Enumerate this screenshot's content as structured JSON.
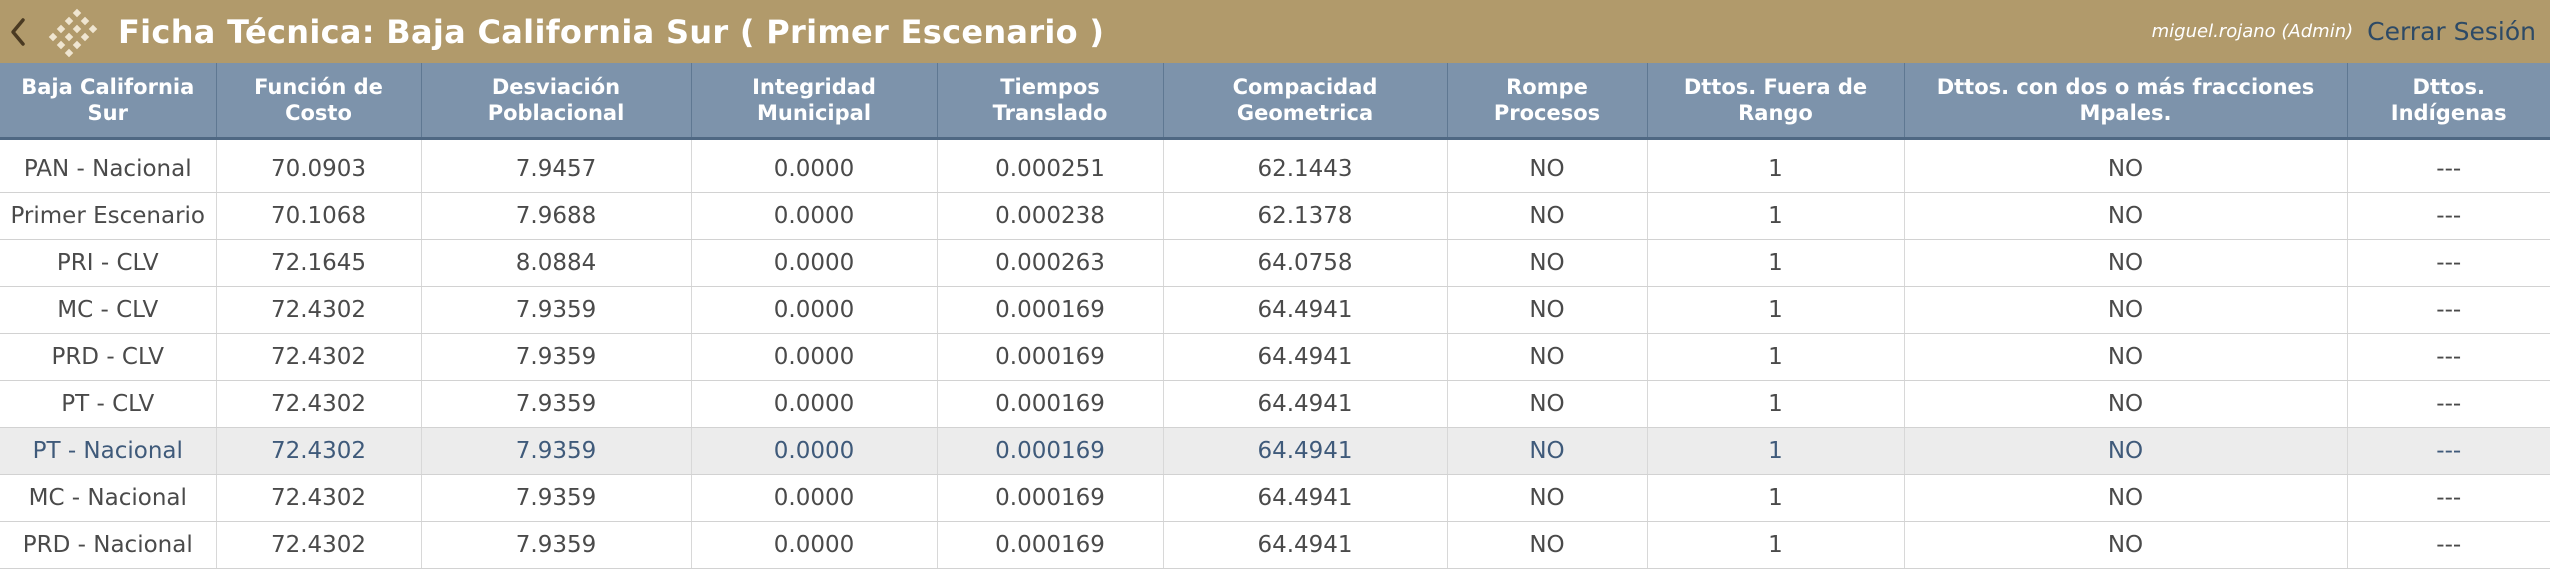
{
  "header": {
    "title": "Ficha Técnica: Baja California Sur ( Primer Escenario )",
    "user": "miguel.rojano (Admin)",
    "logout_label": "Cerrar Sesión",
    "back_icon": "chevron-left-icon",
    "logo_icon": "ine-logo-icon",
    "background_color": "#b19a6b",
    "logout_color": "#2d4a66"
  },
  "table": {
    "header_color": "#7d93ab",
    "columns": [
      "Baja California Sur",
      "Función de Costo",
      "Desviación Poblacional",
      "Integridad Municipal",
      "Tiempos Translado",
      "Compacidad Geometrica",
      "Rompe Procesos",
      "Dttos. Fuera de Rango",
      "Dttos. con dos o más fracciones Mpales.",
      "Dttos. Indígenas"
    ],
    "rows": [
      [
        "PAN - Nacional",
        "70.0903",
        "7.9457",
        "0.0000",
        "0.000251",
        "62.1443",
        "NO",
        "1",
        "NO",
        "---"
      ],
      [
        "Primer Escenario",
        "70.1068",
        "7.9688",
        "0.0000",
        "0.000238",
        "62.1378",
        "NO",
        "1",
        "NO",
        "---"
      ],
      [
        "PRI - CLV",
        "72.1645",
        "8.0884",
        "0.0000",
        "0.000263",
        "64.0758",
        "NO",
        "1",
        "NO",
        "---"
      ],
      [
        "MC - CLV",
        "72.4302",
        "7.9359",
        "0.0000",
        "0.000169",
        "64.4941",
        "NO",
        "1",
        "NO",
        "---"
      ],
      [
        "PRD - CLV",
        "72.4302",
        "7.9359",
        "0.0000",
        "0.000169",
        "64.4941",
        "NO",
        "1",
        "NO",
        "---"
      ],
      [
        "PT - CLV",
        "72.4302",
        "7.9359",
        "0.0000",
        "0.000169",
        "64.4941",
        "NO",
        "1",
        "NO",
        "---"
      ],
      [
        "PT - Nacional",
        "72.4302",
        "7.9359",
        "0.0000",
        "0.000169",
        "64.4941",
        "NO",
        "1",
        "NO",
        "---"
      ],
      [
        "MC - Nacional",
        "72.4302",
        "7.9359",
        "0.0000",
        "0.000169",
        "64.4941",
        "NO",
        "1",
        "NO",
        "---"
      ],
      [
        "PRD - Nacional",
        "72.4302",
        "7.9359",
        "0.0000",
        "0.000169",
        "64.4941",
        "NO",
        "1",
        "NO",
        "---"
      ]
    ],
    "selected_row_index": 6
  }
}
